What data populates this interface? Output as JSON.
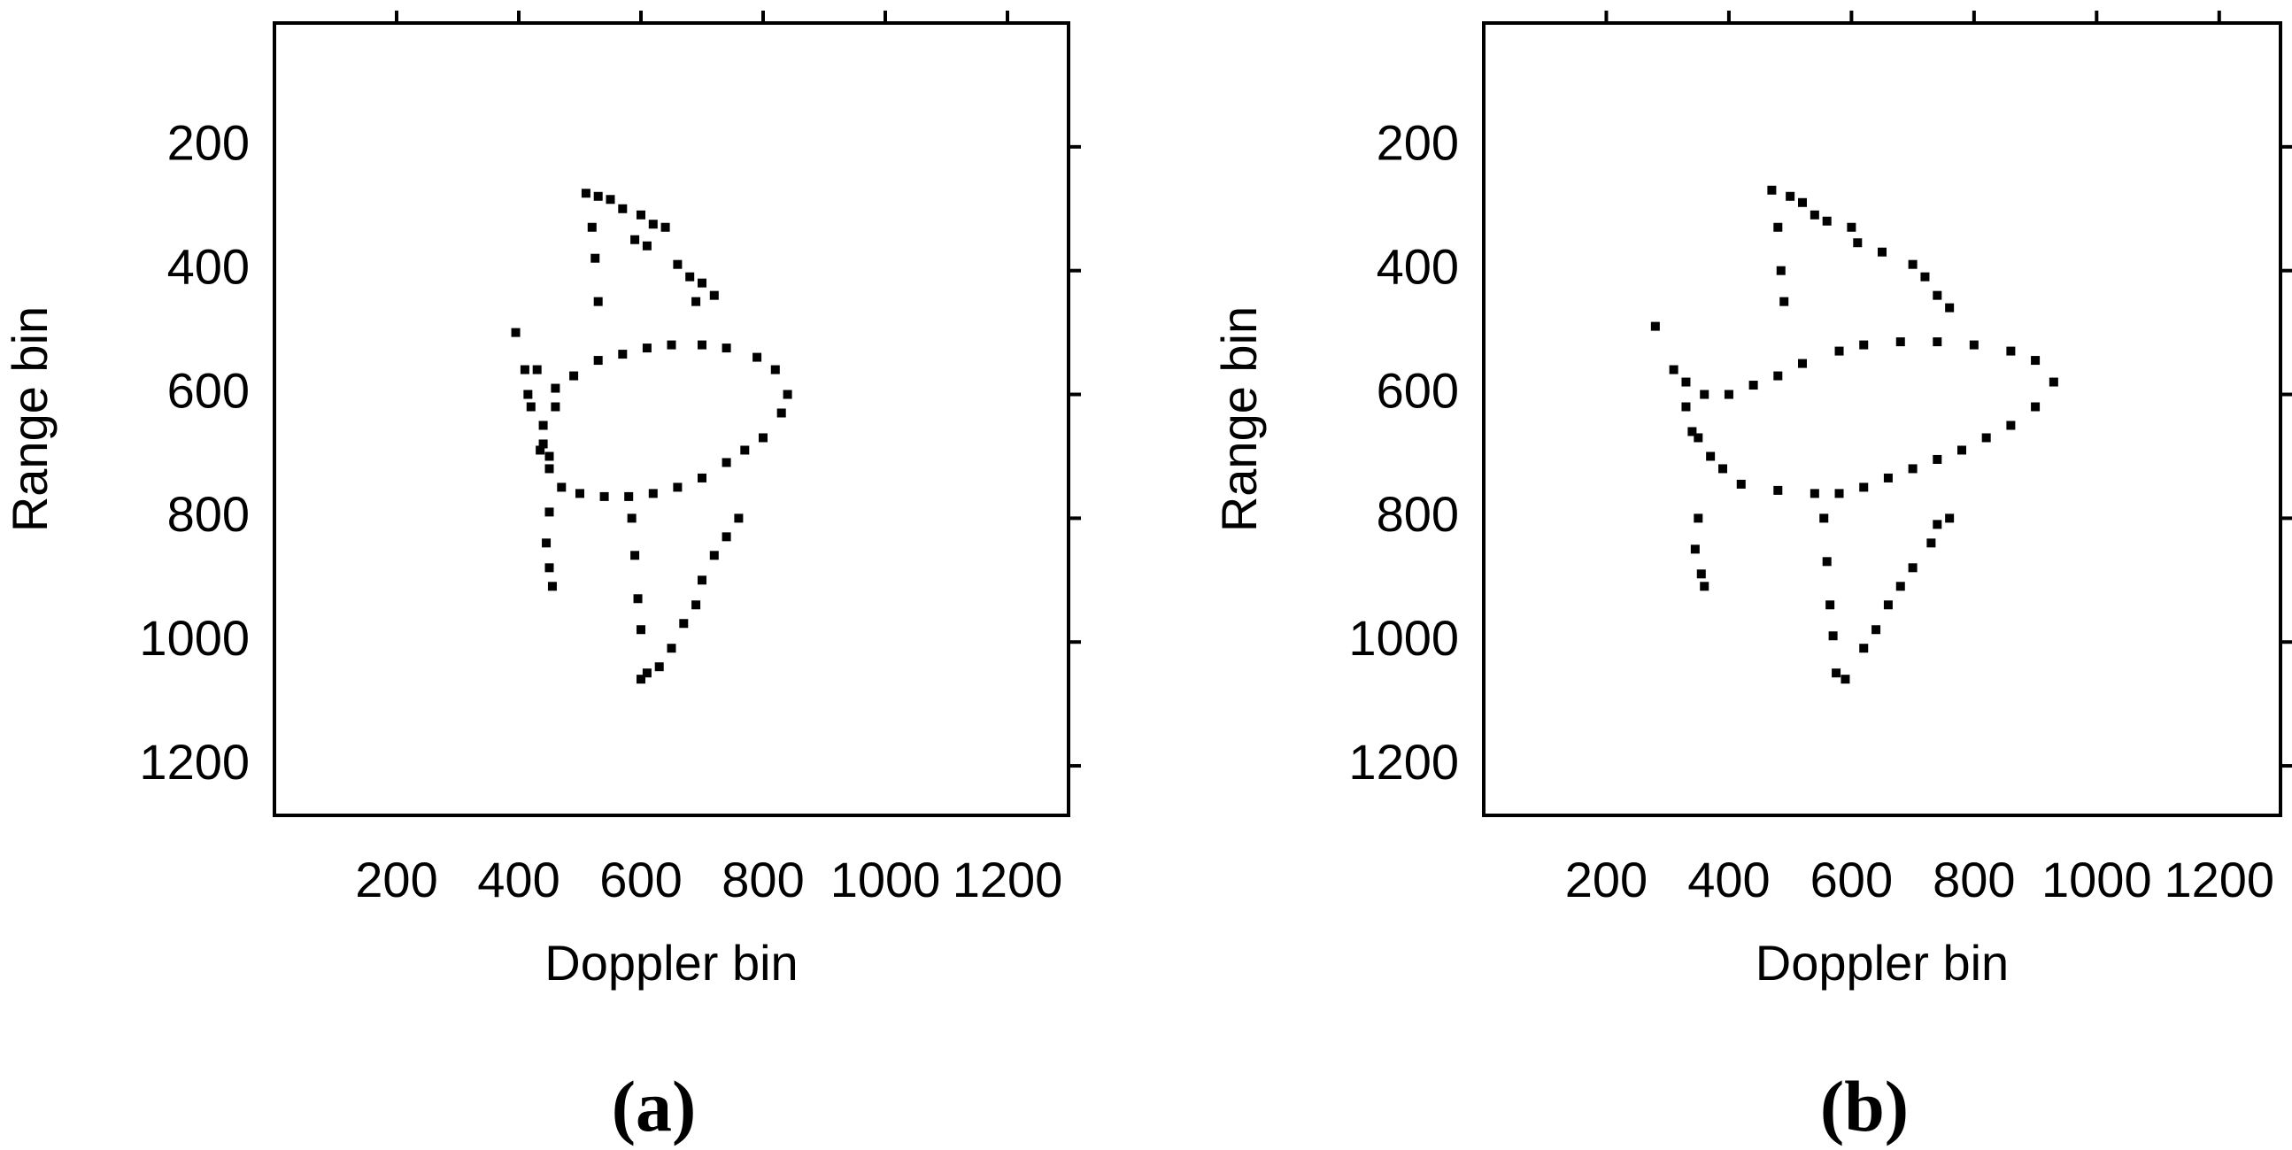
{
  "chart_data": [
    {
      "type": "scatter",
      "panel_label": "(a)",
      "x_label": "Doppler bin",
      "y_label": "Range bin",
      "color": "#000000",
      "y_inverted": true,
      "xlim": [
        0,
        1300
      ],
      "ylim": [
        0,
        1280
      ],
      "xticks": [
        200,
        400,
        600,
        800,
        1000,
        1200
      ],
      "yticks": [
        200,
        400,
        600,
        800,
        1000,
        1200
      ],
      "x": [
        510,
        530,
        550,
        570,
        600,
        620,
        640,
        590,
        610,
        660,
        680,
        700,
        690,
        720,
        520,
        525,
        530,
        430,
        460,
        490,
        530,
        570,
        610,
        650,
        700,
        740,
        790,
        820,
        840,
        830,
        800,
        770,
        740,
        700,
        660,
        620,
        580,
        540,
        500,
        470,
        450,
        435,
        440,
        460,
        395,
        410,
        420,
        440,
        450,
        415,
        450,
        445,
        450,
        455,
        585,
        590,
        595,
        600,
        610,
        600,
        760,
        740,
        720,
        700,
        690,
        670,
        650,
        630
      ],
      "y": [
        275,
        280,
        285,
        300,
        310,
        325,
        330,
        350,
        360,
        390,
        410,
        420,
        450,
        440,
        330,
        380,
        450,
        560,
        590,
        570,
        545,
        535,
        525,
        520,
        520,
        525,
        540,
        560,
        600,
        630,
        670,
        690,
        710,
        735,
        750,
        760,
        765,
        765,
        760,
        750,
        720,
        690,
        650,
        620,
        500,
        560,
        620,
        680,
        700,
        600,
        790,
        840,
        880,
        910,
        800,
        860,
        930,
        980,
        1050,
        1060,
        800,
        830,
        860,
        900,
        940,
        970,
        1010,
        1040
      ]
    },
    {
      "type": "scatter",
      "panel_label": "(b)",
      "x_label": "Doppler bin",
      "y_label": "Range bin",
      "color": "#000000",
      "y_inverted": true,
      "xlim": [
        0,
        1300
      ],
      "ylim": [
        0,
        1280
      ],
      "xticks": [
        200,
        400,
        600,
        800,
        1000,
        1200
      ],
      "yticks": [
        200,
        400,
        600,
        800,
        1000,
        1200
      ],
      "x": [
        470,
        500,
        520,
        540,
        560,
        600,
        610,
        650,
        700,
        720,
        740,
        760,
        480,
        485,
        490,
        330,
        360,
        400,
        440,
        480,
        520,
        580,
        620,
        680,
        740,
        800,
        860,
        900,
        930,
        900,
        860,
        820,
        780,
        740,
        700,
        660,
        620,
        580,
        540,
        480,
        420,
        390,
        280,
        310,
        330,
        350,
        370,
        340,
        350,
        345,
        355,
        360,
        555,
        560,
        565,
        570,
        575,
        590,
        760,
        740,
        730,
        700,
        680,
        660,
        640,
        620
      ],
      "y": [
        270,
        280,
        290,
        310,
        320,
        330,
        355,
        370,
        390,
        410,
        440,
        460,
        330,
        400,
        450,
        580,
        600,
        600,
        585,
        570,
        550,
        530,
        520,
        515,
        515,
        520,
        530,
        545,
        580,
        620,
        650,
        670,
        690,
        705,
        720,
        735,
        750,
        760,
        760,
        755,
        745,
        720,
        490,
        560,
        620,
        670,
        700,
        660,
        800,
        850,
        890,
        910,
        800,
        870,
        940,
        990,
        1050,
        1060,
        800,
        810,
        840,
        880,
        910,
        940,
        980,
        1010
      ]
    }
  ]
}
